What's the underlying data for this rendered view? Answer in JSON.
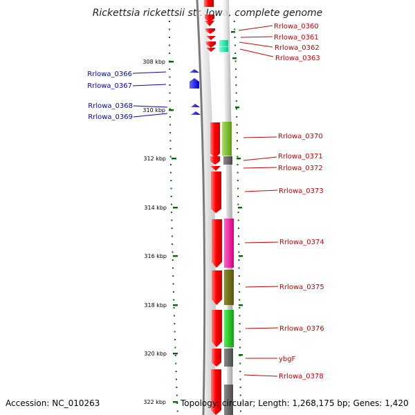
{
  "title": "Rickettsia rickettsii str. Iowa, complete genome",
  "accession": "Accession: NC_010263",
  "summary": "Topology: circular; Length: 1,268,175 bp; Genes: 1,420",
  "ticks": [
    {
      "kbp": 308,
      "label": "308 kbp"
    },
    {
      "kbp": 310,
      "label": "310 kbp"
    },
    {
      "kbp": 312,
      "label": "312 kbp"
    },
    {
      "kbp": 314,
      "label": "314 kbp"
    },
    {
      "kbp": 316,
      "label": "316 kbp"
    },
    {
      "kbp": 318,
      "label": "318 kbp"
    },
    {
      "kbp": 320,
      "label": "320 kbp"
    },
    {
      "kbp": 322,
      "label": "322 kbp"
    }
  ],
  "genes_left": [
    {
      "id": "Rrlowa_0366",
      "label": "Rrlowa_0366"
    },
    {
      "id": "Rrlowa_0367",
      "label": "Rrlowa_0367"
    },
    {
      "id": "Rrlowa_0368",
      "label": "Rrlowa_0368"
    },
    {
      "id": "Rrlowa_0369",
      "label": "Rrlowa_0369"
    }
  ],
  "genes_right": [
    {
      "id": "Rrlowa_0360",
      "label": "Rrlowa_0360"
    },
    {
      "id": "Rrlowa_0361",
      "label": "Rrlowa_0361"
    },
    {
      "id": "Rrlowa_0362",
      "label": "Rrlowa_0362"
    },
    {
      "id": "Rrlowa_0363",
      "label": "Rrlowa_0363"
    },
    {
      "id": "Rrlowa_0370",
      "label": "Rrlowa_0370"
    },
    {
      "id": "Rrlowa_0371",
      "label": "Rrlowa_0371"
    },
    {
      "id": "Rrlowa_0372",
      "label": "Rrlowa_0372"
    },
    {
      "id": "Rrlowa_0373",
      "label": "Rrlowa_0373"
    },
    {
      "id": "Rrlowa_0374",
      "label": "Rrlowa_0374"
    },
    {
      "id": "Rrlowa_0375",
      "label": "Rrlowa_0375"
    },
    {
      "id": "Rrlowa_0376",
      "label": "Rrlowa_0376"
    },
    {
      "id": "ybgF",
      "label": "ybgF"
    },
    {
      "id": "Rrlowa_0378",
      "label": "Rrlowa_0378"
    }
  ],
  "colors": {
    "forward_gene": "#ff0000",
    "reverse_gene": "#0000ff",
    "left_label": "#0000cc",
    "right_label": "#cc0000",
    "tick": "#006600",
    "backbone": "#808080"
  }
}
